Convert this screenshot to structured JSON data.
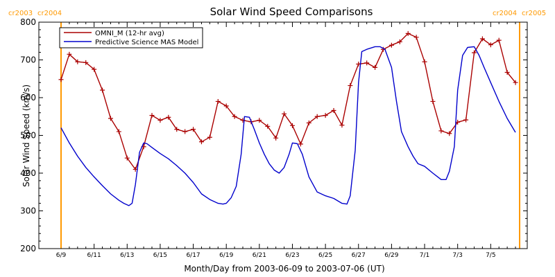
{
  "chart_data": {
    "type": "line",
    "title": "Solar Wind Speed Comparisons",
    "xlabel": "Month/Day from 2003-06-09 to 2003-07-06 (UT)",
    "ylabel": "Solar Wind Speed (km/s)",
    "xlim": [
      0,
      27.75
    ],
    "ylim": [
      200,
      800
    ],
    "x_unit_note": "days",
    "x_tick_values": [
      0,
      2,
      4,
      6,
      8,
      10,
      12,
      14,
      16,
      18,
      20,
      22,
      24,
      26
    ],
    "x_tick_labels": [
      "6/9",
      "6/11",
      "6/13",
      "6/15",
      "6/17",
      "6/19",
      "6/21",
      "6/23",
      "6/25",
      "6/27",
      "6/29",
      "7/1",
      "7/3",
      "7/5"
    ],
    "y_ticks": [
      200,
      300,
      400,
      500,
      600,
      700,
      800
    ],
    "legend_position": "top-left",
    "colors": {
      "omni": "#aa0000",
      "model": "#0000cc",
      "cr": "#ff9900"
    },
    "carrington": [
      {
        "x": 0,
        "left_label": "cr2003",
        "right_label": "cr2004"
      },
      {
        "x": 27.75,
        "left_label": "cr2004",
        "right_label": "cr2005"
      }
    ],
    "series": [
      {
        "name": "OMNI_M (12-hr avg)",
        "color": "#aa0000",
        "markers": true,
        "x": [
          0,
          0.5,
          1,
          1.5,
          2,
          2.5,
          3,
          3.5,
          4,
          4.5,
          5,
          5.5,
          6,
          6.5,
          7,
          7.5,
          8,
          8.5,
          9,
          9.5,
          10,
          10.5,
          11,
          11.5,
          12,
          12.5,
          13,
          13.5,
          14,
          14.5,
          15,
          15.5,
          16,
          16.5,
          17,
          17.5,
          18,
          18.5,
          19,
          19.5,
          20,
          20.5,
          21,
          21.5,
          22,
          22.5,
          23,
          23.5,
          24,
          24.5,
          25,
          25.5,
          26,
          26.5,
          27,
          27.5
        ],
        "y": [
          648,
          715,
          695,
          693,
          675,
          620,
          545,
          510,
          440,
          410,
          470,
          553,
          540,
          548,
          516,
          510,
          516,
          483,
          495,
          590,
          578,
          550,
          540,
          536,
          540,
          524,
          493,
          557,
          526,
          477,
          533,
          550,
          553,
          566,
          527,
          632,
          689,
          692,
          680,
          728,
          739,
          748,
          770,
          760,
          695,
          590,
          512,
          505,
          535,
          541,
          719,
          756,
          740,
          752,
          667,
          640
        ]
      },
      {
        "name": "Predictive Science MAS Model",
        "color": "#0000cc",
        "markers": false,
        "x": [
          0,
          0.5,
          1,
          1.5,
          2,
          2.5,
          3,
          3.5,
          3.8,
          4.1,
          4.3,
          4.5,
          4.75,
          5,
          5.2,
          5.5,
          6,
          6.5,
          7,
          7.5,
          8,
          8.5,
          9,
          9.5,
          9.8,
          10,
          10.3,
          10.6,
          10.9,
          11.1,
          11.4,
          11.7,
          12,
          12.3,
          12.6,
          12.9,
          13.2,
          13.5,
          13.8,
          14,
          14.3,
          14.6,
          15,
          15.5,
          16,
          16.5,
          17,
          17.3,
          17.5,
          17.8,
          18,
          18.2,
          18.5,
          19,
          19.3,
          19.6,
          20,
          20.3,
          20.6,
          21,
          21.3,
          21.6,
          22,
          22.5,
          23,
          23.3,
          23.5,
          23.8,
          24,
          24.3,
          24.6,
          25,
          25.3,
          25.6,
          26,
          26.5,
          27,
          27.5
        ],
        "y": [
          520,
          480,
          445,
          415,
          390,
          367,
          345,
          328,
          320,
          314,
          320,
          370,
          455,
          480,
          478,
          468,
          452,
          438,
          420,
          400,
          375,
          345,
          330,
          320,
          318,
          320,
          335,
          365,
          450,
          550,
          548,
          515,
          480,
          450,
          425,
          408,
          400,
          415,
          450,
          480,
          478,
          450,
          390,
          350,
          340,
          333,
          320,
          318,
          340,
          460,
          640,
          722,
          728,
          735,
          735,
          728,
          680,
          590,
          510,
          470,
          445,
          425,
          418,
          400,
          383,
          383,
          405,
          470,
          620,
          712,
          733,
          735,
          712,
          680,
          640,
          590,
          545,
          508
        ]
      }
    ]
  }
}
